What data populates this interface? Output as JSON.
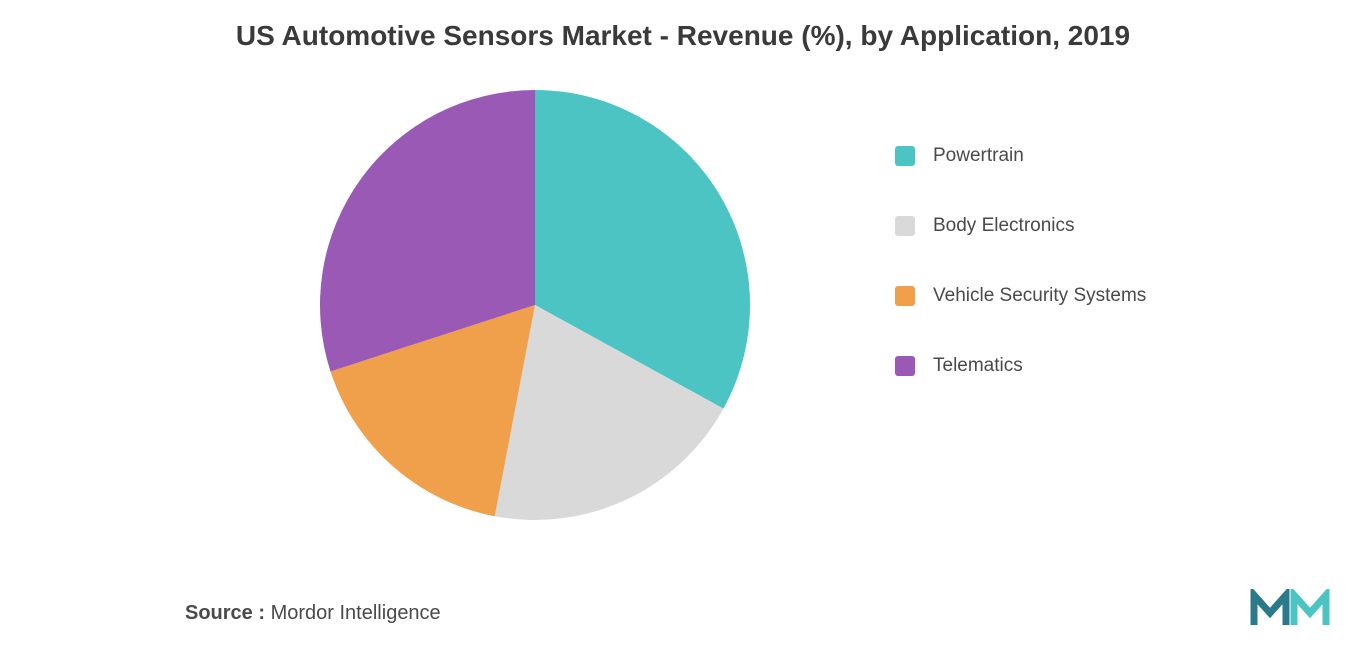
{
  "chart": {
    "type": "pie",
    "title": "US Automotive Sensors Market - Revenue (%), by Application, 2019",
    "title_fontsize": 28,
    "title_color": "#3a3a3a",
    "background_color": "#ffffff",
    "pie_radius": 215,
    "slices": [
      {
        "label": "Powertrain",
        "value": 33,
        "color": "#4cc4c4"
      },
      {
        "label": "Body Electronics",
        "value": 20,
        "color": "#d9d9d9"
      },
      {
        "label": "Vehicle Security Systems",
        "value": 17,
        "color": "#f0a04b"
      },
      {
        "label": "Telematics",
        "value": 30,
        "color": "#9b59b6"
      }
    ],
    "legend": {
      "position": "right",
      "fontsize": 19,
      "label_color": "#4a4a4a",
      "swatch_size": 20,
      "item_gap": 48
    }
  },
  "source": {
    "label": "Source :",
    "name": "Mordor Intelligence",
    "fontsize": 20,
    "color": "#4a4a4a"
  },
  "logo": {
    "name": "mordor-intelligence-logo",
    "primary_color": "#2a7a8c",
    "secondary_color": "#4cc4c4"
  }
}
